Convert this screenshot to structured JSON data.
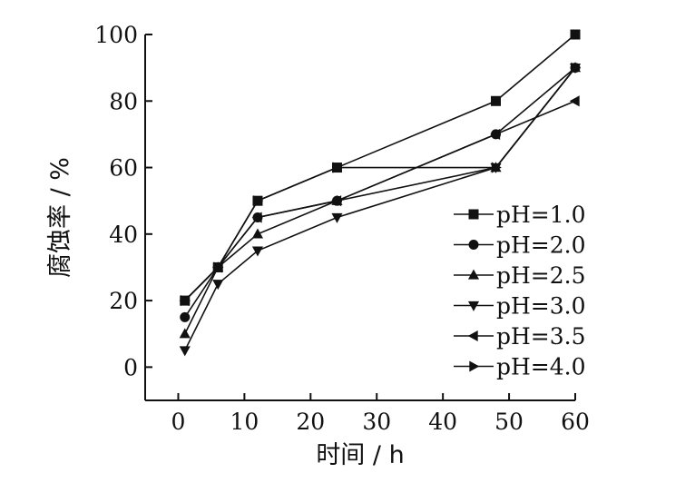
{
  "chart_data": {
    "type": "line",
    "title": "",
    "xlabel": "时间 / h",
    "ylabel": "腐蚀率 / %",
    "xlim": [
      -5,
      60
    ],
    "ylim": [
      -10,
      100
    ],
    "x_ticks": [
      "0",
      "10",
      "20",
      "30",
      "40",
      "50",
      "60"
    ],
    "y_ticks": [
      "0",
      "20",
      "40",
      "60",
      "80",
      "100"
    ],
    "x_tick_values": [
      0,
      10,
      20,
      30,
      40,
      50,
      60
    ],
    "y_tick_values": [
      0,
      20,
      40,
      60,
      80,
      100
    ],
    "grid": false,
    "legend": "right",
    "series": [
      {
        "name": "pH=1.0",
        "marker": "square",
        "x": [
          1,
          6,
          12,
          24,
          48,
          60
        ],
        "y": [
          20,
          30,
          50,
          60,
          80,
          100
        ]
      },
      {
        "name": "pH=2.0",
        "marker": "circle",
        "x": [
          1,
          6,
          12,
          24,
          48,
          60
        ],
        "y": [
          15,
          30,
          45,
          50,
          70,
          90
        ]
      },
      {
        "name": "pH=2.5",
        "marker": "triangle-up",
        "x": [
          1,
          6,
          12,
          24,
          48,
          60
        ],
        "y": [
          10,
          30,
          40,
          50,
          60,
          90
        ]
      },
      {
        "name": "pH=3.0",
        "marker": "triangle-down",
        "x": [
          1,
          6,
          12,
          24,
          48,
          60
        ],
        "y": [
          5,
          25,
          35,
          45,
          60,
          90
        ]
      },
      {
        "name": "pH=3.5",
        "marker": "triangle-left",
        "x": [
          1,
          6,
          12,
          24,
          48,
          60
        ],
        "y": [
          20,
          30,
          45,
          50,
          70,
          80
        ]
      },
      {
        "name": "pH=4.0",
        "marker": "triangle-right",
        "x": [
          1,
          6,
          12,
          24,
          48,
          60
        ],
        "y": [
          20,
          30,
          50,
          60,
          60,
          90
        ]
      }
    ]
  }
}
